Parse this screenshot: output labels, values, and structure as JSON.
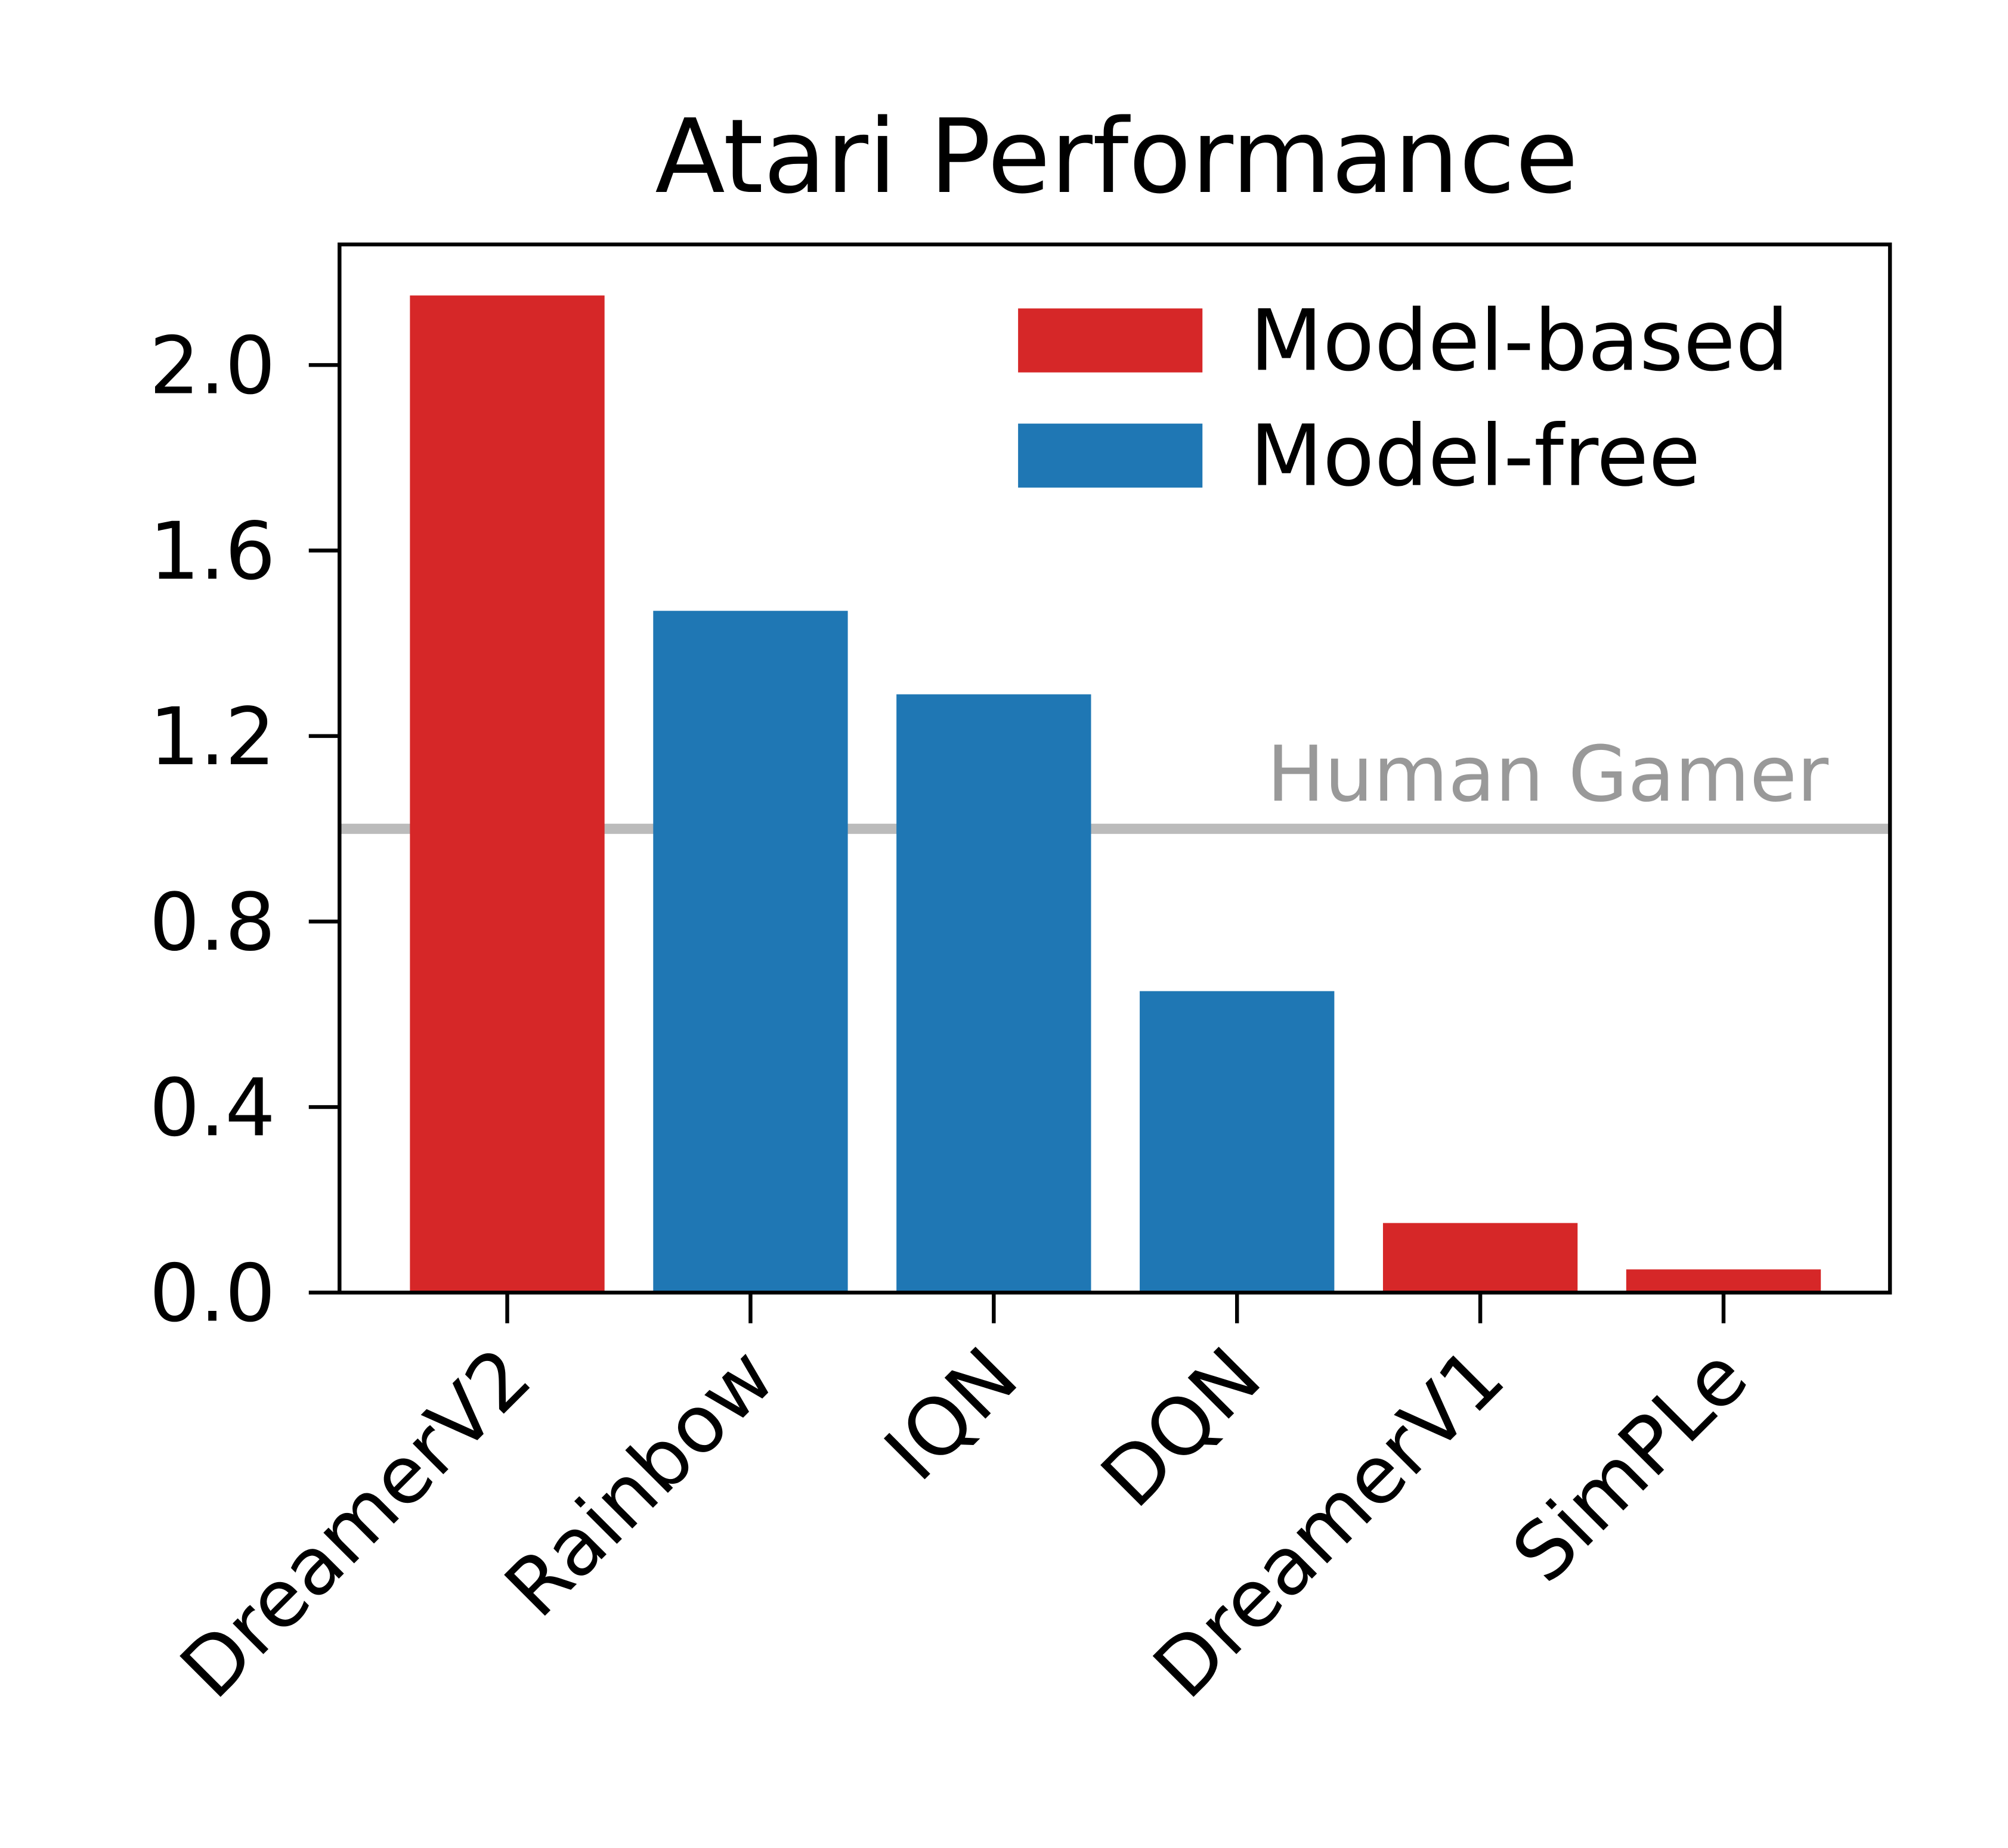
{
  "chart_data": {
    "type": "bar",
    "title": "Atari Performance",
    "xlabel": "",
    "ylabel": "",
    "categories": [
      "DreamerV2",
      "Rainbow",
      "IQN",
      "DQN",
      "DreamerV1",
      "SimPLe"
    ],
    "values": [
      2.15,
      1.47,
      1.29,
      0.65,
      0.15,
      0.05
    ],
    "groups": [
      "Model-based",
      "Model-free",
      "Model-free",
      "Model-free",
      "Model-based",
      "Model-based"
    ],
    "ylim": [
      0,
      2.26
    ],
    "yticks": [
      0.0,
      0.4,
      0.8,
      1.2,
      1.6,
      2.0
    ],
    "ytick_labels": [
      "0.0",
      "0.4",
      "0.8",
      "1.2",
      "1.6",
      "2.0"
    ],
    "grid": false,
    "legend": {
      "placement": "top-right",
      "entries": [
        {
          "label": "Model-based",
          "color": "#d62728"
        },
        {
          "label": "Model-free",
          "color": "#1f77b4"
        }
      ]
    },
    "reference_line": {
      "label": "Human Gamer",
      "value": 1.0,
      "color": "#bbbbbb",
      "label_color": "#999999"
    }
  }
}
